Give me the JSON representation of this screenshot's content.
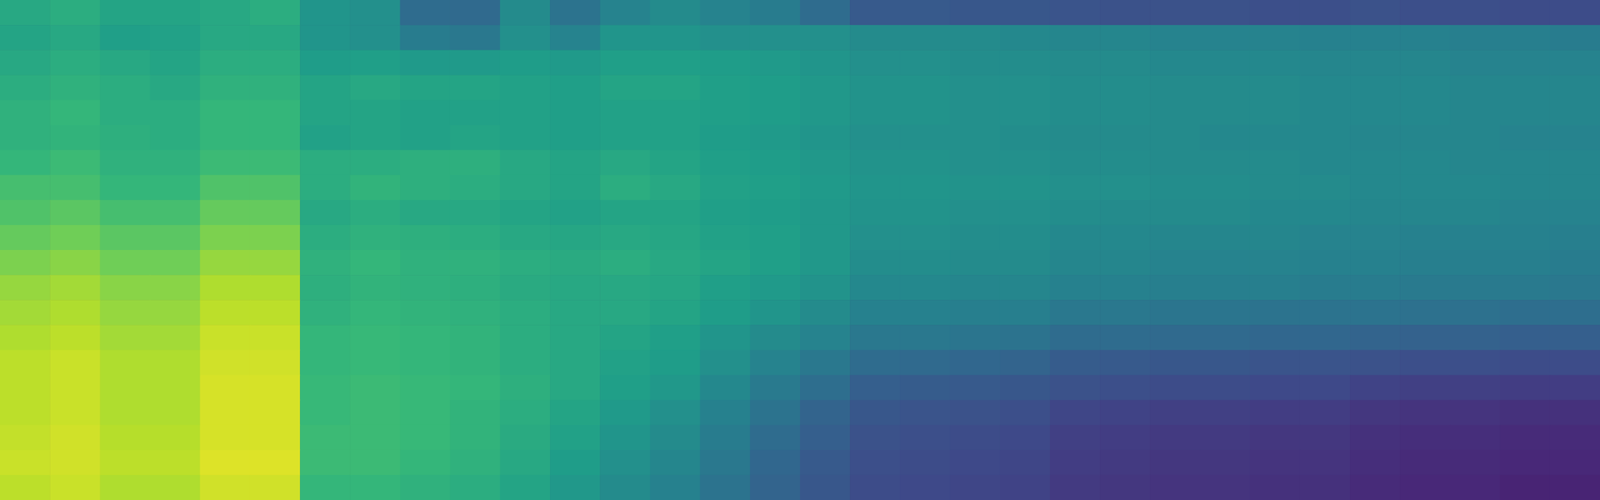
{
  "chart_data": {
    "type": "heatmap",
    "color": "viridis",
    "tick_labels": false,
    "zlim": [
      0,
      100
    ],
    "cells": [
      [
        60,
        62,
        58,
        58,
        60,
        62,
        52,
        50,
        35,
        34,
        48,
        38,
        45,
        48,
        45,
        42,
        35,
        28,
        28,
        27,
        27,
        26,
        25,
        25,
        25,
        24,
        24,
        25,
        24,
        24,
        23,
        23
      ],
      [
        58,
        60,
        56,
        57,
        60,
        60,
        52,
        50,
        42,
        40,
        50,
        45,
        52,
        52,
        50,
        50,
        50,
        48,
        48,
        48,
        47,
        46,
        46,
        45,
        45,
        45,
        44,
        44,
        44,
        43,
        43,
        42
      ],
      [
        60,
        62,
        60,
        58,
        62,
        62,
        55,
        56,
        54,
        54,
        55,
        54,
        56,
        56,
        55,
        54,
        52,
        50,
        50,
        49,
        49,
        48,
        48,
        47,
        47,
        47,
        46,
        46,
        46,
        45,
        45,
        45
      ],
      [
        62,
        64,
        62,
        60,
        64,
        64,
        58,
        60,
        58,
        58,
        57,
        56,
        58,
        58,
        56,
        55,
        53,
        51,
        51,
        50,
        50,
        49,
        49,
        48,
        48,
        48,
        47,
        47,
        47,
        46,
        46,
        46
      ],
      [
        64,
        66,
        62,
        62,
        66,
        66,
        58,
        58,
        57,
        57,
        57,
        56,
        57,
        57,
        56,
        55,
        53,
        51,
        51,
        50,
        50,
        49,
        49,
        48,
        48,
        48,
        47,
        47,
        47,
        46,
        46,
        46
      ],
      [
        64,
        65,
        63,
        62,
        66,
        66,
        57,
        58,
        57,
        58,
        57,
        56,
        57,
        57,
        55,
        54,
        52,
        50,
        50,
        50,
        49,
        48,
        48,
        48,
        47,
        47,
        47,
        46,
        46,
        46,
        45,
        45
      ],
      [
        66,
        68,
        64,
        64,
        68,
        68,
        62,
        62,
        63,
        63,
        60,
        58,
        60,
        58,
        56,
        55,
        53,
        51,
        51,
        50,
        50,
        49,
        49,
        48,
        48,
        48,
        47,
        47,
        47,
        46,
        46,
        46
      ],
      [
        70,
        70,
        66,
        66,
        72,
        72,
        62,
        65,
        63,
        62,
        60,
        58,
        62,
        60,
        57,
        56,
        54,
        52,
        52,
        51,
        51,
        50,
        50,
        49,
        49,
        48,
        48,
        47,
        47,
        47,
        46,
        46
      ],
      [
        72,
        74,
        70,
        70,
        76,
        76,
        60,
        62,
        60,
        60,
        58,
        57,
        58,
        58,
        56,
        55,
        53,
        51,
        51,
        50,
        50,
        49,
        48,
        48,
        48,
        47,
        47,
        46,
        46,
        46,
        45,
        45
      ],
      [
        76,
        78,
        74,
        74,
        80,
        80,
        62,
        64,
        63,
        62,
        60,
        59,
        60,
        59,
        57,
        56,
        53,
        50,
        50,
        49,
        49,
        47,
        47,
        46,
        46,
        46,
        45,
        45,
        44,
        44,
        44,
        43
      ],
      [
        80,
        82,
        78,
        78,
        84,
        84,
        64,
        66,
        64,
        64,
        62,
        61,
        62,
        60,
        58,
        56,
        53,
        49,
        49,
        48,
        48,
        46,
        46,
        45,
        45,
        45,
        44,
        44,
        43,
        43,
        43,
        42
      ],
      [
        84,
        86,
        82,
        82,
        88,
        88,
        63,
        65,
        64,
        63,
        61,
        60,
        60,
        59,
        56,
        54,
        51,
        47,
        47,
        46,
        46,
        44,
        44,
        43,
        43,
        43,
        42,
        42,
        41,
        41,
        41,
        40
      ],
      [
        86,
        88,
        84,
        84,
        90,
        90,
        64,
        66,
        65,
        64,
        62,
        60,
        60,
        58,
        55,
        52,
        48,
        44,
        44,
        43,
        43,
        40,
        40,
        39,
        39,
        38,
        38,
        38,
        37,
        37,
        36,
        36
      ],
      [
        88,
        90,
        86,
        86,
        92,
        92,
        66,
        67,
        66,
        65,
        62,
        60,
        58,
        56,
        52,
        48,
        45,
        40,
        40,
        39,
        38,
        35,
        35,
        34,
        34,
        33,
        33,
        32,
        31,
        31,
        30,
        30
      ],
      [
        90,
        92,
        88,
        88,
        93,
        93,
        66,
        67,
        66,
        65,
        62,
        60,
        57,
        55,
        50,
        45,
        40,
        35,
        34,
        33,
        32,
        29,
        28,
        27,
        27,
        26,
        26,
        25,
        24,
        24,
        23,
        23
      ],
      [
        90,
        92,
        88,
        88,
        94,
        94,
        67,
        68,
        67,
        66,
        63,
        60,
        56,
        53,
        47,
        41,
        36,
        30,
        29,
        28,
        27,
        25,
        24,
        23,
        23,
        22,
        22,
        20,
        19,
        19,
        18,
        18
      ],
      [
        90,
        92,
        88,
        88,
        94,
        94,
        67,
        68,
        67,
        65,
        62,
        58,
        54,
        50,
        44,
        38,
        32,
        27,
        26,
        25,
        24,
        21,
        20,
        19,
        19,
        18,
        18,
        16,
        15,
        15,
        14,
        14
      ],
      [
        91,
        93,
        89,
        89,
        94,
        94,
        68,
        68,
        67,
        65,
        61,
        57,
        52,
        48,
        42,
        35,
        30,
        25,
        24,
        23,
        22,
        19,
        18,
        17,
        17,
        16,
        16,
        14,
        13,
        13,
        12,
        12
      ],
      [
        92,
        93,
        90,
        90,
        95,
        95,
        68,
        68,
        66,
        64,
        60,
        55,
        50,
        46,
        40,
        33,
        28,
        24,
        23,
        22,
        21,
        18,
        17,
        16,
        16,
        15,
        15,
        13,
        12,
        12,
        11,
        11
      ],
      [
        90,
        92,
        88,
        88,
        93,
        93,
        66,
        66,
        64,
        62,
        58,
        53,
        48,
        44,
        38,
        32,
        27,
        23,
        22,
        21,
        20,
        17,
        16,
        15,
        15,
        14,
        14,
        12,
        11,
        11,
        10,
        10
      ]
    ]
  }
}
